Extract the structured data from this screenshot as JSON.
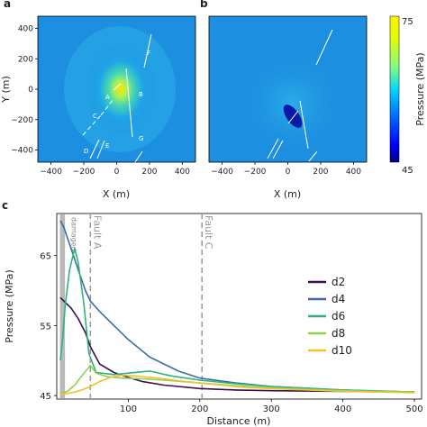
{
  "panels": {
    "a_label": "a",
    "b_label": "b",
    "c_label": "c"
  },
  "map_panels": {
    "xlabel": "X (m)",
    "ylabel": "Y (m)",
    "x_ticks": [
      -400,
      -200,
      0,
      200,
      400
    ],
    "y_ticks": [
      400,
      200,
      0,
      -200,
      -400
    ],
    "fault_labels": [
      "A",
      "B",
      "C",
      "D",
      "E",
      "F",
      "G"
    ]
  },
  "colorbar": {
    "label": "Pressure (MPa)",
    "max_label": "75",
    "min_label": "45",
    "colors": [
      "#00007f",
      "#0000ff",
      "#0080ff",
      "#00e0ff",
      "#7fff7f",
      "#e0ff00",
      "#ffd700",
      "#fff200"
    ]
  },
  "chart_data": {
    "type": "line",
    "title": "",
    "xlabel": "Distance (m)",
    "ylabel": "Pressure (MPa)",
    "xlim": [
      0,
      510
    ],
    "ylim": [
      44.5,
      71
    ],
    "x_ticks": [
      100,
      200,
      300,
      400,
      500
    ],
    "y_ticks": [
      45,
      55,
      65
    ],
    "legend_position": "right",
    "annotations": [
      {
        "text": "damaged",
        "x": 8
      },
      {
        "text": "Fault A",
        "x": 47
      },
      {
        "text": "Fault C",
        "x": 203
      }
    ],
    "series": [
      {
        "name": "d2",
        "color": "#3b0f4f",
        "x": [
          5,
          10,
          20,
          30,
          40,
          47,
          60,
          80,
          100,
          120,
          150,
          200,
          250,
          300,
          400,
          500
        ],
        "y": [
          59,
          58.5,
          57.5,
          56,
          54,
          52,
          49.5,
          48.3,
          47.6,
          47,
          46.5,
          46,
          45.8,
          45.7,
          45.6,
          45.5
        ]
      },
      {
        "name": "d4",
        "color": "#3a6ea5",
        "x": [
          5,
          10,
          20,
          30,
          40,
          47,
          60,
          80,
          100,
          130,
          170,
          200,
          250,
          300,
          400,
          500
        ],
        "y": [
          70,
          69,
          66,
          63,
          60,
          58.5,
          57,
          55,
          53,
          50.5,
          48.5,
          47.5,
          46.8,
          46.3,
          45.8,
          45.5
        ]
      },
      {
        "name": "d6",
        "color": "#2fb37a",
        "x": [
          5,
          8,
          12,
          18,
          25,
          30,
          38,
          45,
          55,
          80,
          100,
          130,
          160,
          200,
          250,
          300,
          400,
          500
        ],
        "y": [
          50,
          53,
          58,
          63,
          66,
          64,
          58,
          51,
          48.3,
          48,
          48.2,
          48.5,
          47.8,
          47.2,
          46.7,
          46.3,
          45.8,
          45.5
        ]
      },
      {
        "name": "d8",
        "color": "#8fd14f",
        "x": [
          5,
          15,
          25,
          35,
          47,
          55,
          70,
          90,
          120,
          150,
          200,
          250,
          300,
          400,
          500
        ],
        "y": [
          45.3,
          45.6,
          46.5,
          47.8,
          49.3,
          48.2,
          47.7,
          47.5,
          47.4,
          47.2,
          46.8,
          46.4,
          46.1,
          45.7,
          45.5
        ]
      },
      {
        "name": "d10",
        "color": "#f2c12e",
        "x": [
          5,
          15,
          25,
          35,
          47,
          60,
          75,
          90,
          110,
          140,
          180,
          220,
          260,
          300,
          400,
          500
        ],
        "y": [
          45.2,
          45.3,
          45.5,
          45.8,
          46.3,
          47,
          47.6,
          47.9,
          47.8,
          47.5,
          47,
          46.6,
          46.2,
          46,
          45.6,
          45.4
        ]
      }
    ]
  }
}
